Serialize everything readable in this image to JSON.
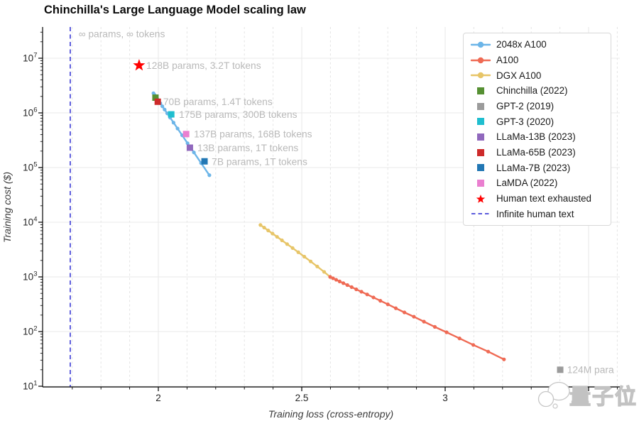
{
  "title": "Chinchilla's Large Language Model scaling law",
  "watermark": {
    "text": "量子位",
    "icon": "chat-bubbles"
  },
  "chart_data": {
    "type": "line",
    "title": "Chinchilla's Large Language Model scaling law",
    "xlabel": "Training loss (cross-entropy)",
    "ylabel": "Training cost ($)",
    "x_axis": {
      "min": 1.597,
      "max": 3.609,
      "major_ticks": [
        2,
        2.5,
        3,
        3.5
      ],
      "major_tick_labels": [
        {
          "value": 2,
          "label": "2"
        },
        {
          "value": 2.5,
          "label": "2.5"
        },
        {
          "value": 3,
          "label": "3"
        }
      ],
      "minor_tick_start": 1.7,
      "minor_tick_end": 3.6,
      "minor_tick_step": 0.1
    },
    "y_axis": {
      "scale": "log",
      "min": 10,
      "max": 37000000,
      "decade_exponents": [
        1,
        2,
        3,
        4,
        5,
        6,
        7
      ]
    },
    "grid": {
      "major": true,
      "minor_x_dashed": true
    },
    "legend_position": "upper right",
    "series": [
      {
        "name": "2048x A100",
        "color": "#6cb5e8",
        "marker": "circle",
        "points": [
          [
            1.983,
            2290000
          ],
          [
            1.987,
            2130000
          ],
          [
            1.991,
            1990000
          ],
          [
            1.996,
            1820000
          ],
          [
            2.001,
            1670000
          ],
          [
            2.007,
            1500000
          ],
          [
            2.014,
            1320000
          ],
          [
            2.022,
            1150000
          ],
          [
            2.031,
            979000
          ],
          [
            2.041,
            820000
          ],
          [
            2.053,
            663000
          ],
          [
            2.067,
            518000
          ],
          [
            2.083,
            390000
          ],
          [
            2.102,
            278000
          ],
          [
            2.124,
            189000
          ],
          [
            2.149,
            121000
          ],
          [
            2.178,
            72500
          ]
        ]
      },
      {
        "name": "DGX A100",
        "color": "#e7c568",
        "marker": "circle",
        "points": [
          [
            2.356,
            8910
          ],
          [
            2.369,
            7975
          ],
          [
            2.383,
            7068
          ],
          [
            2.398,
            6209
          ],
          [
            2.414,
            5408
          ],
          [
            2.431,
            4664
          ],
          [
            2.449,
            3981
          ],
          [
            2.468,
            3373
          ],
          [
            2.488,
            2825
          ],
          [
            2.509,
            2344
          ],
          [
            2.531,
            1920
          ],
          [
            2.554,
            1552
          ],
          [
            2.578,
            1236
          ],
          [
            2.599,
            1000
          ]
        ]
      },
      {
        "name": "A100",
        "color": "#ef6a54",
        "marker": "circle",
        "points": [
          [
            2.599,
            1000
          ],
          [
            2.609,
            944
          ],
          [
            2.62,
            886
          ],
          [
            2.632,
            827
          ],
          [
            2.645,
            768
          ],
          [
            2.659,
            709
          ],
          [
            2.674,
            650
          ],
          [
            2.69,
            593
          ],
          [
            2.708,
            536
          ],
          [
            2.728,
            478
          ],
          [
            2.75,
            421
          ],
          [
            2.774,
            366
          ],
          [
            2.8,
            315
          ],
          [
            2.828,
            267
          ],
          [
            2.858,
            224
          ],
          [
            2.891,
            187
          ],
          [
            2.926,
            152
          ],
          [
            2.964,
            122
          ],
          [
            3.005,
            97
          ],
          [
            3.05,
            75
          ],
          [
            3.098,
            57
          ],
          [
            3.15,
            43
          ],
          [
            3.205,
            31
          ]
        ]
      }
    ],
    "scatter": [
      {
        "name": "Chinchilla (2022)",
        "color": "#569033",
        "x": 1.99,
        "y": 1900000
      },
      {
        "name": "LLaMa-65B (2023)",
        "color": "#cd2a2a",
        "x": 1.998,
        "y": 1600000
      },
      {
        "name": "GPT-3 (2020)",
        "color": "#1fbecf",
        "x": 2.045,
        "y": 940000
      },
      {
        "name": "LaMDA (2022)",
        "color": "#ea7fd0",
        "x": 2.097,
        "y": 410000
      },
      {
        "name": "LLaMa-13B (2023)",
        "color": "#9068bd",
        "x": 2.11,
        "y": 231000
      },
      {
        "name": "LLaMa-7B (2023)",
        "color": "#2277b4",
        "x": 2.161,
        "y": 130000
      },
      {
        "name": "GPT-2 (2019)",
        "color": "#9b9b9b",
        "x": 3.401,
        "y": 20
      }
    ],
    "special": {
      "human_text_exhausted": {
        "label": "Human text exhausted",
        "color": "#ff0000",
        "marker": "star",
        "x": 1.933,
        "y": 7400000
      },
      "infinite_human_text": {
        "label": "Infinite human text",
        "color": "#4646d8",
        "style": "dashed-vline",
        "x": 1.693
      }
    },
    "annotations": [
      {
        "text": "∞ params, ∞ tokens",
        "x": 1.722,
        "y": 28000000
      },
      {
        "text": "128B params, 3.2T tokens",
        "x": 1.958,
        "y": 7400000
      },
      {
        "text": "70B params, 1.4T tokens",
        "x": 2.017,
        "y": 1600000
      },
      {
        "text": "175B params, 300B tokens",
        "x": 2.072,
        "y": 940000
      },
      {
        "text": "137B params, 168B tokens",
        "x": 2.124,
        "y": 410000
      },
      {
        "text": "13B params, 1T tokens",
        "x": 2.136,
        "y": 228000
      },
      {
        "text": "7B params, 1T tokens",
        "x": 2.186,
        "y": 128000
      },
      {
        "text": "124M para",
        "x": 3.425,
        "y": 20
      }
    ],
    "legend": [
      {
        "label": "2048x A100",
        "marker": "line-dot",
        "color": "#6cb5e8"
      },
      {
        "label": "A100",
        "marker": "line-dot",
        "color": "#ef6a54"
      },
      {
        "label": "DGX A100",
        "marker": "line-dot",
        "color": "#e7c568"
      },
      {
        "label": "Chinchilla (2022)",
        "marker": "square",
        "color": "#569033"
      },
      {
        "label": "GPT-2 (2019)",
        "marker": "square",
        "color": "#9b9b9b"
      },
      {
        "label": "GPT-3 (2020)",
        "marker": "square",
        "color": "#1fbecf"
      },
      {
        "label": "LLaMa-13B (2023)",
        "marker": "square",
        "color": "#9068bd"
      },
      {
        "label": "LLaMa-65B (2023)",
        "marker": "square",
        "color": "#cd2a2a"
      },
      {
        "label": "LLaMa-7B (2023)",
        "marker": "square",
        "color": "#2277b4"
      },
      {
        "label": "LaMDA (2022)",
        "marker": "square",
        "color": "#ea7fd0"
      },
      {
        "label": "Human text exhausted",
        "marker": "star",
        "color": "#ff0000"
      },
      {
        "label": "Infinite human text",
        "marker": "dashed-line",
        "color": "#4646d8"
      }
    ]
  }
}
